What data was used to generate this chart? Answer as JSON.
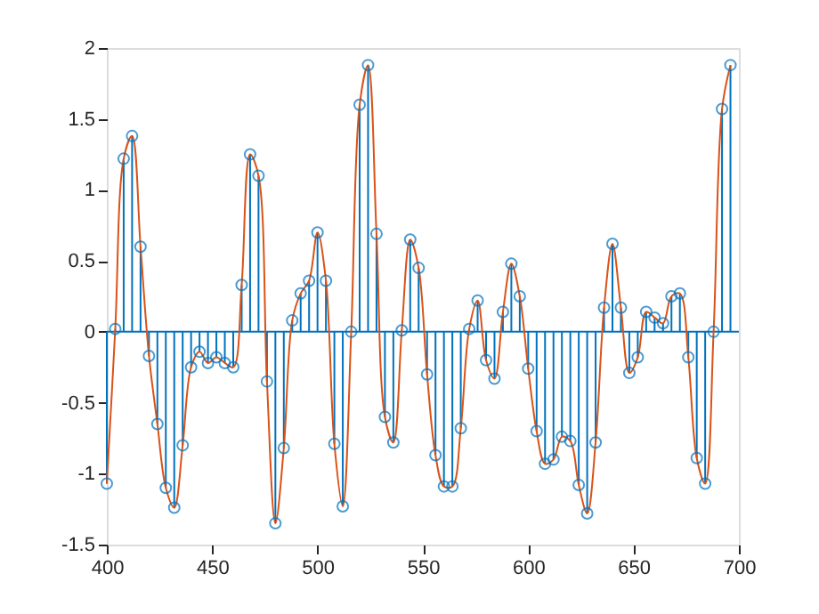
{
  "chart_data": {
    "type": "lollipop",
    "x": [
      400,
      404,
      408,
      412,
      416,
      420,
      424,
      428,
      432,
      436,
      440,
      444,
      448,
      452,
      456,
      460,
      464,
      468,
      472,
      476,
      480,
      484,
      488,
      492,
      496,
      500,
      504,
      508,
      512,
      516,
      520,
      524,
      528,
      532,
      536,
      540,
      544,
      548,
      552,
      556,
      560,
      564,
      568,
      572,
      576,
      580,
      584,
      588,
      592,
      596,
      600,
      604,
      608,
      612,
      616,
      620,
      624,
      628,
      632,
      636,
      640,
      644,
      648,
      652,
      656,
      660,
      664,
      668,
      672,
      676,
      680,
      684,
      688,
      692,
      696
    ],
    "series": [
      {
        "color": "#0072bd",
        "marker": "circle",
        "values": [
          -1.07,
          0.02,
          1.22,
          1.38,
          0.6,
          -0.17,
          -0.65,
          -1.1,
          -1.24,
          -0.8,
          -0.25,
          -0.14,
          -0.22,
          -0.18,
          -0.22,
          -0.25,
          0.33,
          1.25,
          1.1,
          -0.35,
          -1.35,
          -0.82,
          0.08,
          0.27,
          0.36,
          0.7,
          0.36,
          -0.79,
          -1.23,
          0.0,
          1.6,
          1.88,
          0.69,
          -0.6,
          -0.78,
          0.01,
          0.65,
          0.45,
          -0.3,
          -0.87,
          -1.09,
          -1.09,
          -0.68,
          0.02,
          0.22,
          -0.2,
          -0.33,
          0.14,
          0.48,
          0.25,
          -0.26,
          -0.7,
          -0.93,
          -0.9,
          -0.74,
          -0.77,
          -1.08,
          -1.28,
          -0.78,
          0.17,
          0.62,
          0.17,
          -0.29,
          -0.18,
          0.14,
          0.1,
          0.06,
          0.25,
          0.27,
          -0.18,
          -0.89,
          -1.07,
          0.0,
          1.57,
          1.88
        ]
      },
      {
        "type": "line",
        "color": "#d95319",
        "marker": "none",
        "line_style": "solid",
        "values": [
          -1.07,
          0.02,
          1.22,
          1.38,
          0.6,
          -0.17,
          -0.65,
          -1.1,
          -1.24,
          -0.8,
          -0.25,
          -0.14,
          -0.22,
          -0.18,
          -0.22,
          -0.25,
          0.33,
          1.25,
          1.1,
          -0.35,
          -1.35,
          -0.82,
          0.08,
          0.27,
          0.36,
          0.7,
          0.36,
          -0.79,
          -1.23,
          0.0,
          1.6,
          1.88,
          0.69,
          -0.6,
          -0.78,
          0.01,
          0.65,
          0.45,
          -0.3,
          -0.87,
          -1.09,
          -1.09,
          -0.68,
          0.02,
          0.22,
          -0.2,
          -0.33,
          0.14,
          0.48,
          0.25,
          -0.26,
          -0.7,
          -0.93,
          -0.9,
          -0.74,
          -0.77,
          -1.08,
          -1.28,
          -0.78,
          0.17,
          0.62,
          0.17,
          -0.29,
          -0.18,
          0.14,
          0.1,
          0.06,
          0.25,
          0.27,
          -0.18,
          -0.89,
          -1.07,
          0.0,
          1.57,
          1.88
        ]
      }
    ],
    "ref_lines": [
      {
        "axis": "y",
        "value": 0,
        "color": "#0072bd"
      }
    ],
    "xlim": [
      400,
      700
    ],
    "xticks": [
      400,
      450,
      500,
      550,
      600,
      650,
      700
    ],
    "ylim": [
      -1.5,
      2
    ],
    "yticks": [
      -1.5,
      -1,
      -0.5,
      0,
      0.5,
      1,
      1.5,
      2
    ],
    "grid": false
  }
}
